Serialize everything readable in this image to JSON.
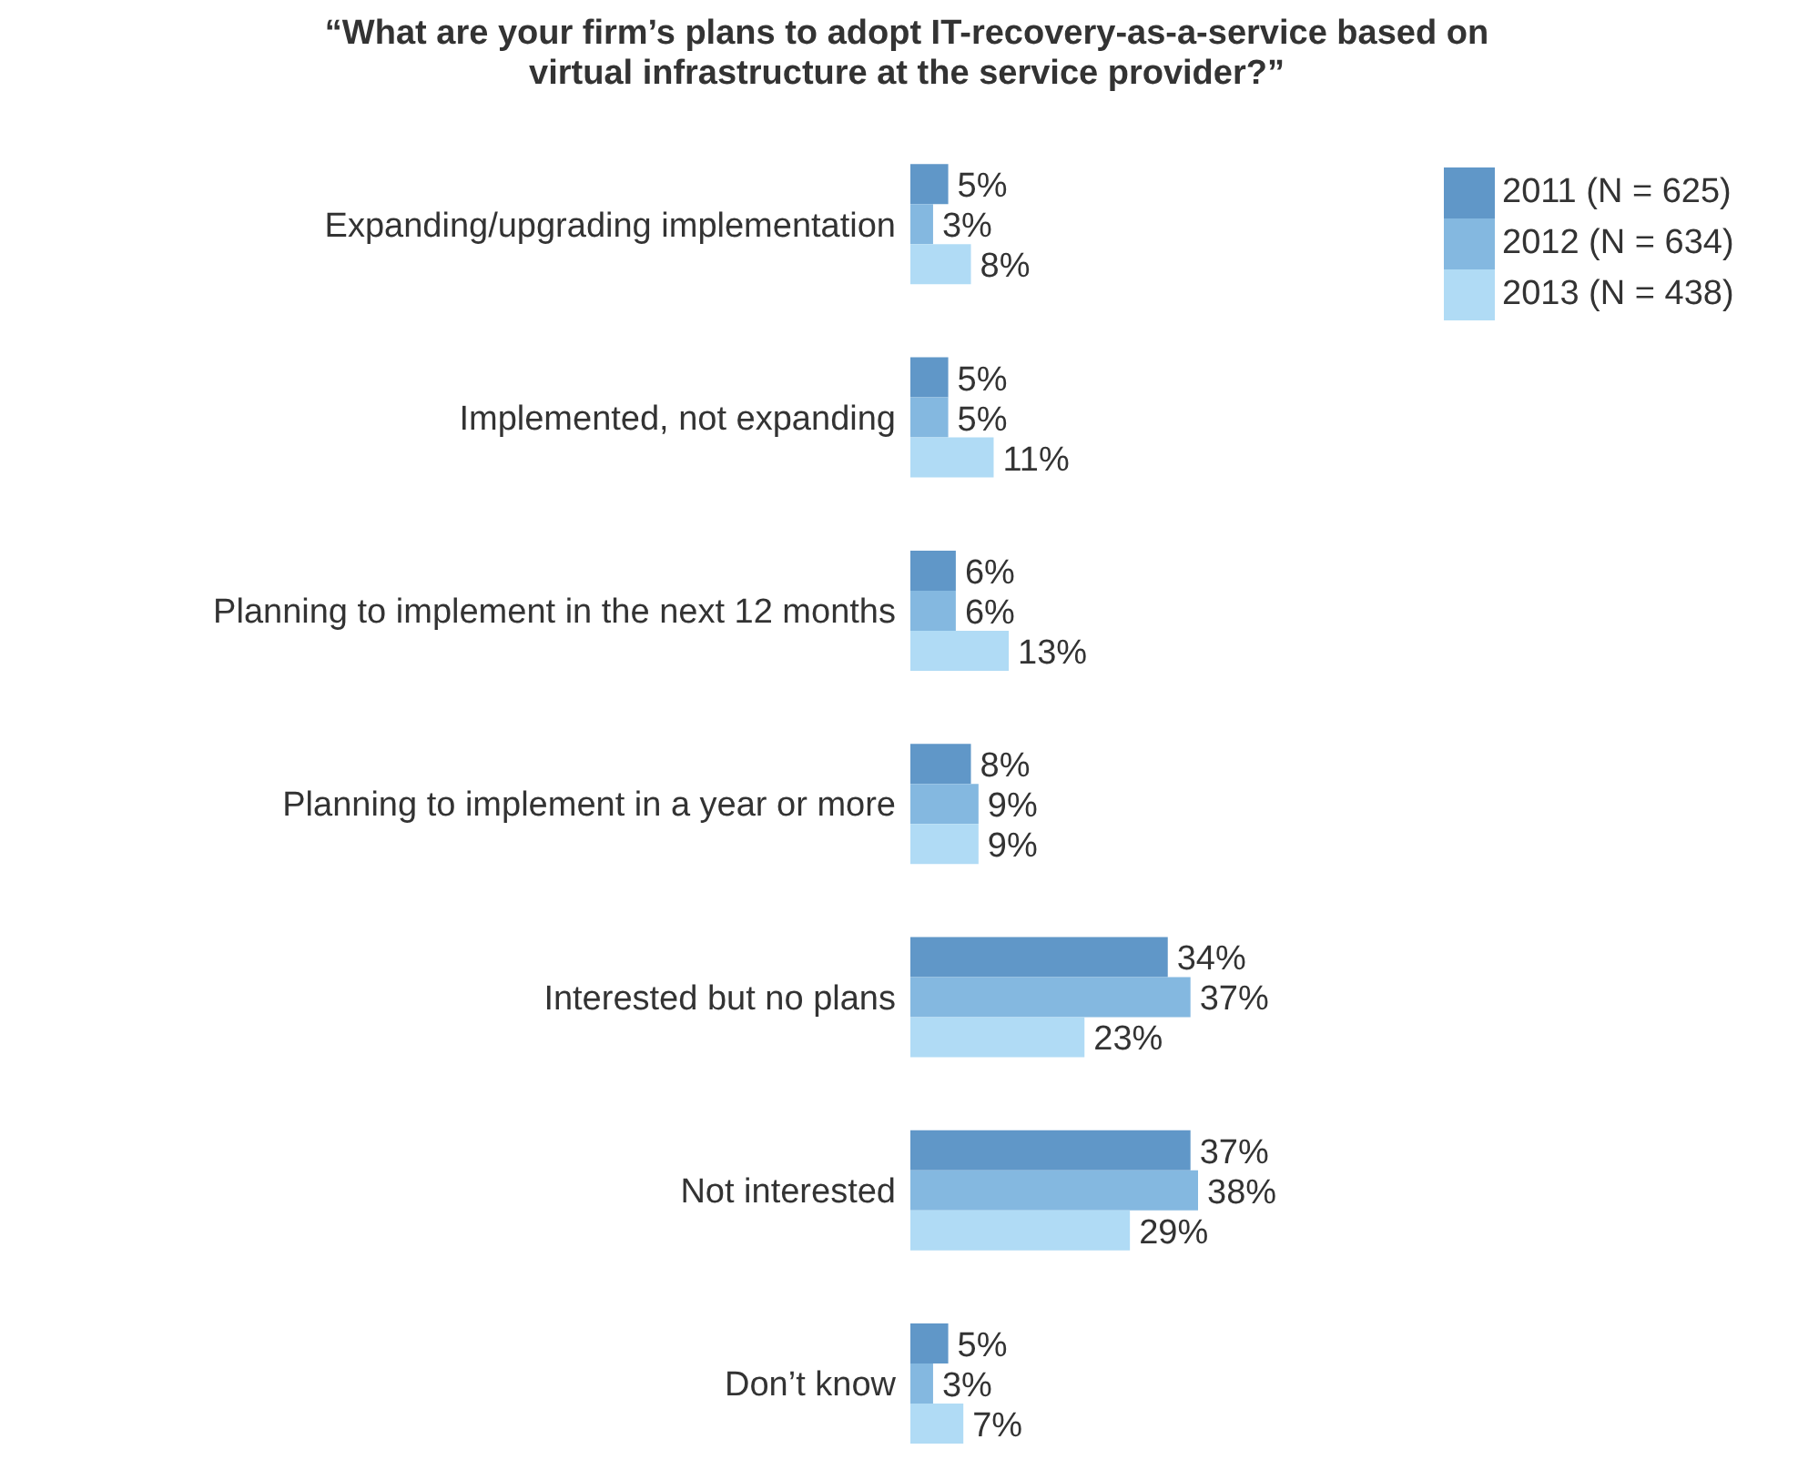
{
  "chart_data": {
    "type": "bar",
    "orientation": "horizontal",
    "title": "“What are your firm’s plans to adopt IT-recovery-as-a-service based on virtual infrastructure at the service provider?”",
    "categories": [
      "Expanding/upgrading implementation",
      "Implemented, not expanding",
      "Planning to implement in the next 12 months",
      "Planning to implement in a year or more",
      "Interested but no plans",
      "Not interested",
      "Don’t know"
    ],
    "series": [
      {
        "name": "2011 (N = 625)",
        "color": "#6097c8",
        "values": [
          5,
          5,
          6,
          8,
          34,
          37,
          5
        ],
        "value_labels": [
          "5%",
          "5%",
          "6%",
          "8%",
          "34%",
          "37%",
          "5%"
        ]
      },
      {
        "name": "2012 (N = 634)",
        "color": "#84b8e0",
        "values": [
          3,
          5,
          6,
          9,
          37,
          38,
          3
        ],
        "value_labels": [
          "3%",
          "5%",
          "6%",
          "9%",
          "37%",
          "38%",
          "3%"
        ]
      },
      {
        "name": "2013 (N = 438)",
        "color": "#b0dbf5",
        "values": [
          8,
          11,
          13,
          9,
          23,
          29,
          7
        ],
        "value_labels": [
          "8%",
          "11%",
          "13%",
          "9%",
          "23%",
          "29%",
          "7%"
        ]
      }
    ],
    "legend": "top right",
    "grid": false
  }
}
